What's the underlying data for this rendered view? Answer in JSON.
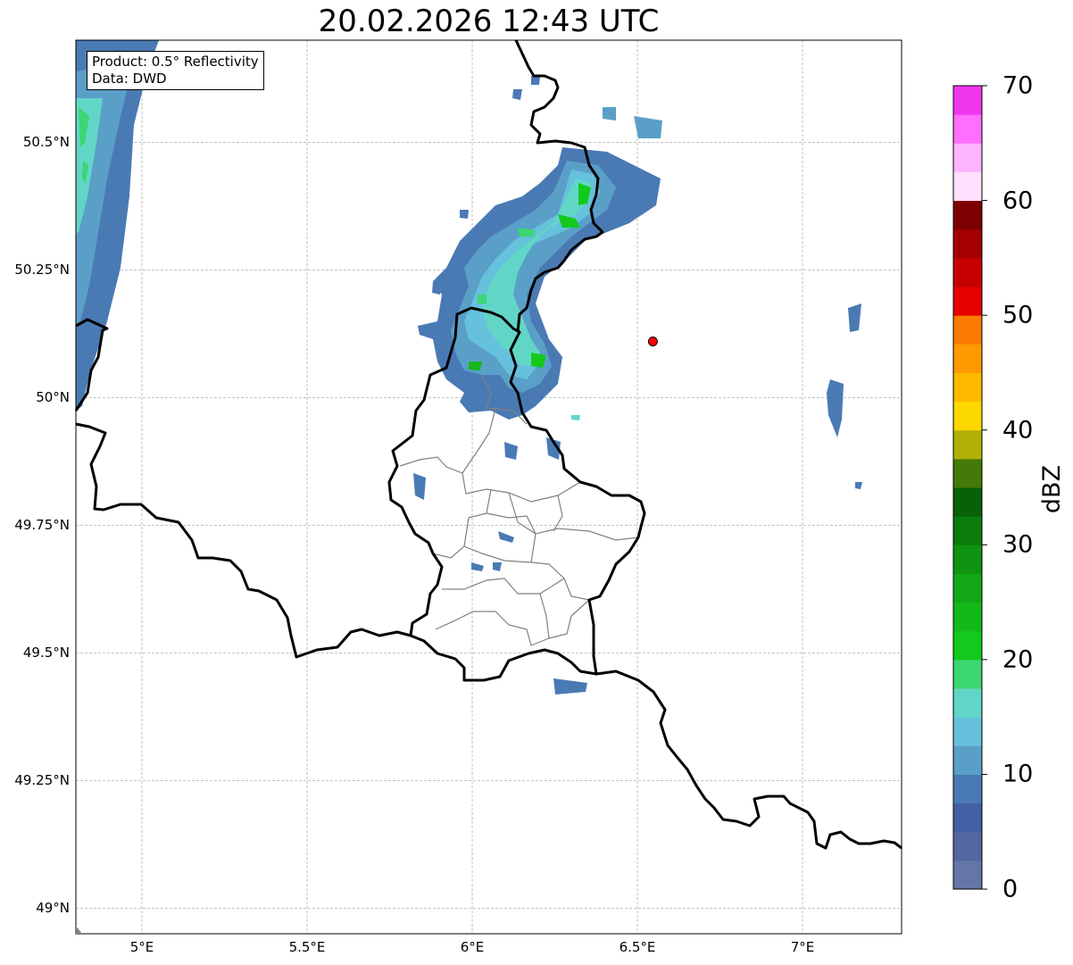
{
  "title": "20.02.2026 12:43 UTC",
  "info": {
    "product": "Product: 0.5° Reflectivity",
    "data": "Data: DWD"
  },
  "map": {
    "lon_range": [
      4.8,
      7.3
    ],
    "lat_range": [
      48.95,
      50.7
    ],
    "gridlines": true,
    "lat_ticks": [
      {
        "value": 49.0,
        "label": "49°N"
      },
      {
        "value": 49.25,
        "label": "49.25°N"
      },
      {
        "value": 49.5,
        "label": "49.5°N"
      },
      {
        "value": 49.75,
        "label": "49.75°N"
      },
      {
        "value": 50.0,
        "label": "50°N"
      },
      {
        "value": 50.25,
        "label": "50.25°N"
      },
      {
        "value": 50.5,
        "label": "50.5°N"
      }
    ],
    "lon_ticks": [
      {
        "value": 5.0,
        "label": "5°E"
      },
      {
        "value": 5.5,
        "label": "5.5°E"
      },
      {
        "value": 6.0,
        "label": "6°E"
      },
      {
        "value": 6.5,
        "label": "6.5°E"
      },
      {
        "value": 7.0,
        "label": "7°E"
      }
    ],
    "radar_site": {
      "lon": 6.547,
      "lat": 50.11,
      "color": "#ff0000"
    }
  },
  "colorbar": {
    "label": "dBZ",
    "min": 0,
    "max": 70,
    "ticks": [
      {
        "value": 0,
        "label": "0"
      },
      {
        "value": 10,
        "label": "10"
      },
      {
        "value": 20,
        "label": "20"
      },
      {
        "value": 30,
        "label": "30"
      },
      {
        "value": 40,
        "label": "40"
      },
      {
        "value": 50,
        "label": "50"
      },
      {
        "value": 60,
        "label": "60"
      },
      {
        "value": 70,
        "label": "70"
      }
    ],
    "colors": [
      "#6575a8",
      "#5367a0",
      "#4460a4",
      "#4a7ab4",
      "#5a9fc8",
      "#66c1dc",
      "#62d6c6",
      "#3cd672",
      "#12c91c",
      "#13b919",
      "#12a715",
      "#109310",
      "#0c7c0c",
      "#086008",
      "#457a08",
      "#b0b005",
      "#fdd800",
      "#fdb900",
      "#fd9a00",
      "#fd7a00",
      "#e60000",
      "#c60000",
      "#a40000",
      "#7c0000",
      "#ffe1ff",
      "#ffb4ff",
      "#ff6eff",
      "#ee37ee"
    ]
  }
}
